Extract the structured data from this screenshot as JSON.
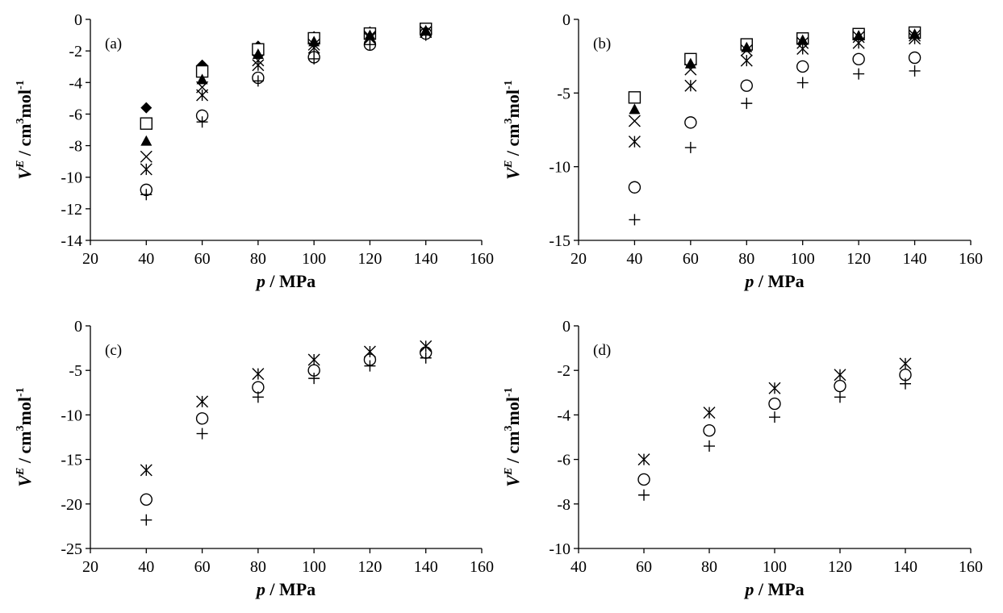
{
  "figure": {
    "xlabel_symbol": "p",
    "xlabel_unit": " / MPa",
    "ylabel_base": "V",
    "ylabel_sup1": "E",
    "ylabel_mid": " / cm",
    "ylabel_sup2": "3",
    "ylabel_tail": "mol",
    "ylabel_sup3": "-1"
  },
  "chart_data": [
    {
      "type": "scatter",
      "panel_label": "(a)",
      "xlim": [
        20,
        160
      ],
      "ylim": [
        -14,
        0
      ],
      "xticks": [
        "20",
        "40",
        "60",
        "80",
        "100",
        "120",
        "140",
        "160"
      ],
      "yticks": [
        "0",
        "-2",
        "-4",
        "-6",
        "-8",
        "-10",
        "-12",
        "-14"
      ],
      "grid": false,
      "legend": "none",
      "series": [
        {
          "marker": "diamond-filled",
          "points": [
            [
              40,
              -5.6
            ],
            [
              60,
              -2.9
            ],
            [
              80,
              -1.7
            ],
            [
              100,
              -1.1
            ],
            [
              120,
              -0.8
            ],
            [
              140,
              -0.6
            ]
          ]
        },
        {
          "marker": "square-open",
          "points": [
            [
              40,
              -6.6
            ],
            [
              60,
              -3.3
            ],
            [
              80,
              -1.9
            ],
            [
              100,
              -1.2
            ],
            [
              120,
              -0.9
            ],
            [
              140,
              -0.6
            ]
          ]
        },
        {
          "marker": "triangle-filled",
          "points": [
            [
              40,
              -7.7
            ],
            [
              60,
              -3.8
            ],
            [
              80,
              -2.2
            ],
            [
              100,
              -1.4
            ],
            [
              120,
              -1.0
            ],
            [
              140,
              -0.7
            ]
          ]
        },
        {
          "marker": "x",
          "points": [
            [
              40,
              -8.7
            ],
            [
              60,
              -4.3
            ],
            [
              80,
              -2.6
            ],
            [
              100,
              -1.6
            ],
            [
              120,
              -1.1
            ],
            [
              140,
              -0.8
            ]
          ]
        },
        {
          "marker": "asterisk",
          "points": [
            [
              40,
              -9.5
            ],
            [
              60,
              -4.8
            ],
            [
              80,
              -2.9
            ],
            [
              100,
              -1.8
            ],
            [
              120,
              -1.2
            ],
            [
              140,
              -0.8
            ]
          ]
        },
        {
          "marker": "circle-open",
          "points": [
            [
              40,
              -10.8
            ],
            [
              60,
              -6.1
            ],
            [
              80,
              -3.7
            ],
            [
              100,
              -2.4
            ],
            [
              120,
              -1.6
            ],
            [
              140,
              -0.9
            ]
          ]
        },
        {
          "marker": "plus",
          "points": [
            [
              40,
              -11.1
            ],
            [
              60,
              -6.5
            ],
            [
              80,
              -3.9
            ],
            [
              100,
              -2.5
            ],
            [
              120,
              -1.6
            ],
            [
              140,
              -1.0
            ]
          ]
        }
      ]
    },
    {
      "type": "scatter",
      "panel_label": "(b)",
      "xlim": [
        20,
        160
      ],
      "ylim": [
        -15,
        0
      ],
      "xticks": [
        "20",
        "40",
        "60",
        "80",
        "100",
        "120",
        "140",
        "160"
      ],
      "yticks": [
        "0",
        "-5",
        "-10",
        "-15"
      ],
      "grid": false,
      "legend": "none",
      "series": [
        {
          "marker": "square-open",
          "points": [
            [
              40,
              -5.3
            ],
            [
              60,
              -2.7
            ],
            [
              80,
              -1.7
            ],
            [
              100,
              -1.3
            ],
            [
              120,
              -1.0
            ],
            [
              140,
              -0.9
            ]
          ]
        },
        {
          "marker": "triangle-filled",
          "points": [
            [
              40,
              -6.1
            ],
            [
              60,
              -3.0
            ],
            [
              80,
              -1.9
            ],
            [
              100,
              -1.4
            ],
            [
              120,
              -1.1
            ],
            [
              140,
              -1.0
            ]
          ]
        },
        {
          "marker": "x",
          "points": [
            [
              40,
              -6.9
            ],
            [
              60,
              -3.4
            ],
            [
              80,
              -2.1
            ],
            [
              100,
              -1.6
            ],
            [
              120,
              -1.2
            ],
            [
              140,
              -1.1
            ]
          ]
        },
        {
          "marker": "asterisk",
          "points": [
            [
              40,
              -8.3
            ],
            [
              60,
              -4.5
            ],
            [
              80,
              -2.8
            ],
            [
              100,
              -2.0
            ],
            [
              120,
              -1.6
            ],
            [
              140,
              -1.3
            ]
          ]
        },
        {
          "marker": "circle-open",
          "points": [
            [
              40,
              -11.4
            ],
            [
              60,
              -7.0
            ],
            [
              80,
              -4.5
            ],
            [
              100,
              -3.2
            ],
            [
              120,
              -2.7
            ],
            [
              140,
              -2.6
            ]
          ]
        },
        {
          "marker": "plus",
          "points": [
            [
              40,
              -13.6
            ],
            [
              60,
              -8.7
            ],
            [
              80,
              -5.7
            ],
            [
              100,
              -4.3
            ],
            [
              120,
              -3.7
            ],
            [
              140,
              -3.5
            ]
          ]
        }
      ]
    },
    {
      "type": "scatter",
      "panel_label": "(c)",
      "xlim": [
        20,
        160
      ],
      "ylim": [
        -25,
        0
      ],
      "xticks": [
        "20",
        "40",
        "60",
        "80",
        "100",
        "120",
        "140",
        "160"
      ],
      "yticks": [
        "0",
        "-5",
        "-10",
        "-15",
        "-20",
        "-25"
      ],
      "grid": false,
      "legend": "none",
      "series": [
        {
          "marker": "asterisk",
          "points": [
            [
              40,
              -16.2
            ],
            [
              60,
              -8.5
            ],
            [
              80,
              -5.4
            ],
            [
              100,
              -3.8
            ],
            [
              120,
              -2.9
            ],
            [
              140,
              -2.3
            ]
          ]
        },
        {
          "marker": "circle-open",
          "points": [
            [
              40,
              -19.5
            ],
            [
              60,
              -10.4
            ],
            [
              80,
              -6.9
            ],
            [
              100,
              -5.0
            ],
            [
              120,
              -3.8
            ],
            [
              140,
              -3.0
            ]
          ]
        },
        {
          "marker": "plus",
          "points": [
            [
              40,
              -21.8
            ],
            [
              60,
              -12.1
            ],
            [
              80,
              -8.0
            ],
            [
              100,
              -5.9
            ],
            [
              120,
              -4.5
            ],
            [
              140,
              -3.6
            ]
          ]
        }
      ]
    },
    {
      "type": "scatter",
      "panel_label": "(d)",
      "xlim": [
        40,
        160
      ],
      "ylim": [
        -10,
        0
      ],
      "xticks": [
        "40",
        "60",
        "80",
        "100",
        "120",
        "140",
        "160"
      ],
      "yticks": [
        "0",
        "-2",
        "-4",
        "-6",
        "-8",
        "-10"
      ],
      "grid": false,
      "legend": "none",
      "series": [
        {
          "marker": "asterisk",
          "points": [
            [
              60,
              -6.0
            ],
            [
              80,
              -3.9
            ],
            [
              100,
              -2.8
            ],
            [
              120,
              -2.2
            ],
            [
              140,
              -1.7
            ]
          ]
        },
        {
          "marker": "circle-open",
          "points": [
            [
              60,
              -6.9
            ],
            [
              80,
              -4.7
            ],
            [
              100,
              -3.5
            ],
            [
              120,
              -2.7
            ],
            [
              140,
              -2.2
            ]
          ]
        },
        {
          "marker": "plus",
          "points": [
            [
              60,
              -7.6
            ],
            [
              80,
              -5.4
            ],
            [
              100,
              -4.1
            ],
            [
              120,
              -3.2
            ],
            [
              140,
              -2.6
            ]
          ]
        }
      ]
    }
  ]
}
